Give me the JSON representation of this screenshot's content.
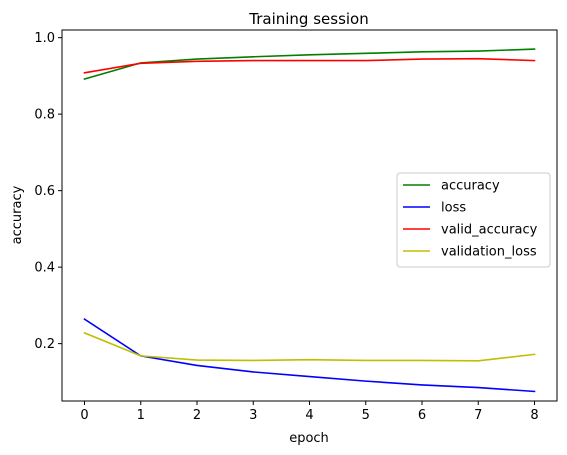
{
  "chart_data": {
    "type": "line",
    "title": "Training session",
    "xlabel": "epoch",
    "ylabel": "accuracy",
    "x": [
      0,
      1,
      2,
      3,
      4,
      5,
      6,
      7,
      8
    ],
    "xticks": [
      "0",
      "1",
      "2",
      "3",
      "4",
      "5",
      "6",
      "7",
      "8"
    ],
    "yticks": [
      0.2,
      0.4,
      0.6,
      0.8,
      1.0
    ],
    "ytick_labels": [
      "0.2",
      "0.4",
      "0.6",
      "0.8",
      "1.0"
    ],
    "xlim": [
      -0.4,
      8.4
    ],
    "ylim": [
      0.05,
      1.02
    ],
    "grid": false,
    "legend_position": "center-right",
    "series": [
      {
        "name": "accuracy",
        "color": "#008000",
        "values": [
          0.892,
          0.934,
          0.944,
          0.95,
          0.955,
          0.959,
          0.963,
          0.965,
          0.97
        ]
      },
      {
        "name": "loss",
        "color": "#0000ff",
        "values": [
          0.264,
          0.168,
          0.143,
          0.126,
          0.114,
          0.102,
          0.092,
          0.085,
          0.075
        ]
      },
      {
        "name": "valid_accuracy",
        "color": "#ff0000",
        "values": [
          0.908,
          0.933,
          0.938,
          0.94,
          0.94,
          0.94,
          0.944,
          0.945,
          0.94
        ]
      },
      {
        "name": "validation_loss",
        "color": "#bfbf00",
        "values": [
          0.228,
          0.168,
          0.157,
          0.156,
          0.158,
          0.156,
          0.156,
          0.155,
          0.172
        ]
      }
    ]
  }
}
